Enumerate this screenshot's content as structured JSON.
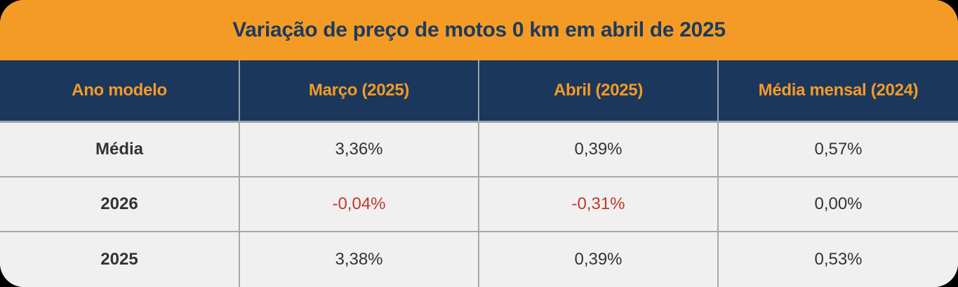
{
  "title": "Variação de preço de motos 0 km em abril de 2025",
  "table": {
    "headers": [
      "Ano modelo",
      "Março (2025)",
      "Abril (2025)",
      "Média mensal (2024)"
    ],
    "rows": [
      [
        "Média",
        "3,36%",
        "0,39%",
        "0,57%"
      ],
      [
        "2026",
        "-0,04%",
        "-0,31%",
        "0,00%"
      ],
      [
        "2025",
        "3,38%",
        "0,39%",
        "0,53%"
      ]
    ]
  },
  "colors": {
    "title_background": "#f49b26",
    "title_text": "#1d3a5c",
    "header_background": "#1b375c",
    "header_text": "#f49b26",
    "negative_value": "#c0392b"
  }
}
